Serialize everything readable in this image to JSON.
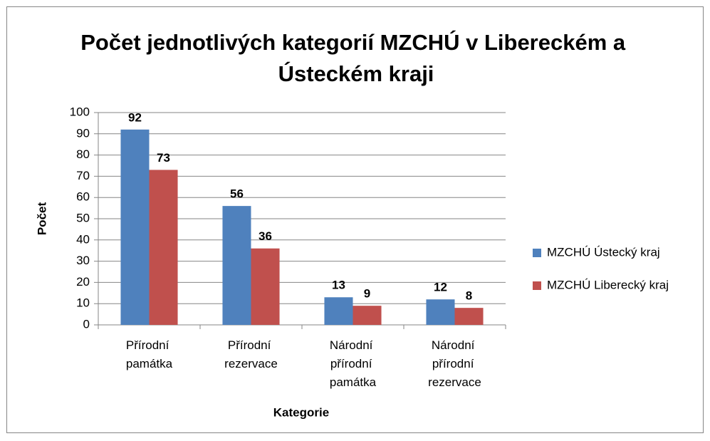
{
  "chart_data": {
    "type": "bar",
    "title": "Počet  jednotlivých kategorií MZCHÚ v Libereckém a Ústeckém kraji",
    "x_label": "Kategorie",
    "y_label": "Počet",
    "categories": [
      "Přírodní památka",
      "Přírodní rezervace",
      "Národní přírodní památka",
      "Národní přírodní rezervace"
    ],
    "series": [
      {
        "name": "MZCHÚ Ústecký kraj",
        "color": "#4f81bd",
        "values": [
          92,
          56,
          13,
          12
        ]
      },
      {
        "name": "MZCHÚ Liberecký kraj",
        "color": "#c0504d",
        "values": [
          73,
          36,
          9,
          8
        ]
      }
    ],
    "ylim": [
      0,
      100
    ],
    "yticks": [
      0,
      10,
      20,
      30,
      40,
      50,
      60,
      70,
      80,
      90,
      100
    ],
    "grid": true,
    "legend": "right"
  }
}
